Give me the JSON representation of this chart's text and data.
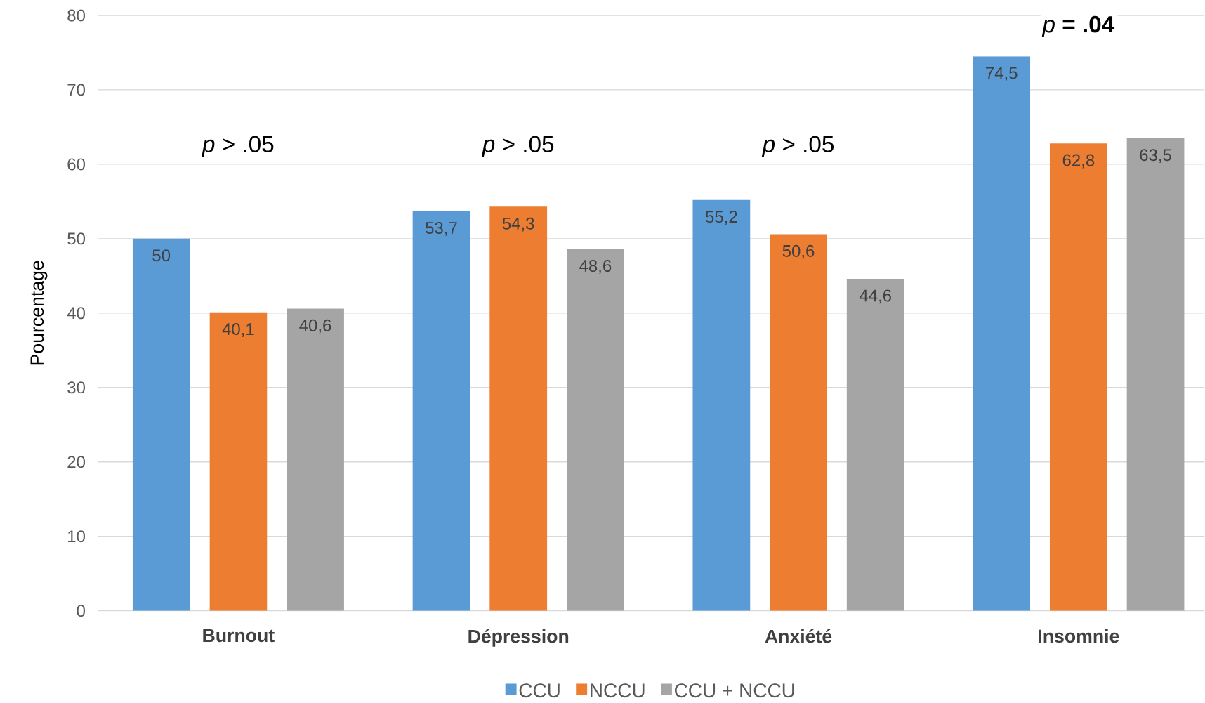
{
  "chart_data": {
    "type": "bar",
    "ylabel": "Pourcentage",
    "categories": [
      "Burnout",
      "Dépression",
      "Anxiété",
      "Insomnie"
    ],
    "series": [
      {
        "name": "CCU",
        "color": "#5b9bd5",
        "values": [
          50,
          53.7,
          55.2,
          74.5
        ],
        "value_labels": [
          "50",
          "53,7",
          "55,2",
          "74,5"
        ]
      },
      {
        "name": "NCCU",
        "color": "#ed7d31",
        "values": [
          40.1,
          54.3,
          50.6,
          62.8
        ],
        "value_labels": [
          "40,1",
          "54,3",
          "50,6",
          "62,8"
        ]
      },
      {
        "name": "CCU + NCCU",
        "color": "#a5a5a5",
        "values": [
          40.6,
          48.6,
          44.6,
          63.5
        ],
        "value_labels": [
          "40,6",
          "48,6",
          "44,6",
          "63,5"
        ]
      }
    ],
    "annotations": [
      "*p* > .05",
      "*p* > .05",
      "*p* > .05",
      "*p* **= .04**"
    ],
    "ylim": [
      0,
      80
    ],
    "yticks": [
      0,
      10,
      20,
      30,
      40,
      50,
      60,
      70,
      80
    ],
    "grid": "y",
    "legend": "bottom"
  }
}
